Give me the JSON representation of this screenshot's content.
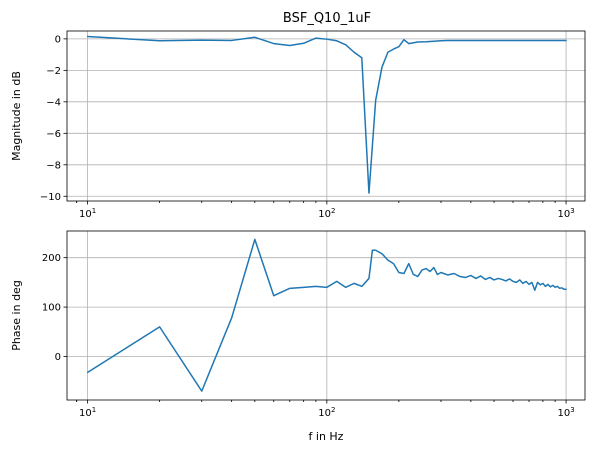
{
  "figure": {
    "title": "BSF_Q10_1uF"
  },
  "chart_data": [
    {
      "type": "line",
      "title": "BSF_Q10_1uF",
      "xlabel": "",
      "ylabel": "Magnitude in dB",
      "xscale": "log",
      "xlim": [
        8.2,
        1200
      ],
      "ylim": [
        -10.3,
        0.5
      ],
      "grid": true,
      "line_color": "#1f77b4",
      "x_ticks": [
        {
          "value": 10,
          "base": "10",
          "exp": "1"
        },
        {
          "value": 100,
          "base": "10",
          "exp": "2"
        },
        {
          "value": 1000,
          "base": "10",
          "exp": "3"
        }
      ],
      "y_ticks": [
        {
          "value": 0,
          "label": "0"
        },
        {
          "value": -2,
          "label": "−2"
        },
        {
          "value": -4,
          "label": "−4"
        },
        {
          "value": -6,
          "label": "−6"
        },
        {
          "value": -8,
          "label": "−8"
        },
        {
          "value": -10,
          "label": "−10"
        }
      ],
      "series": [
        {
          "x": [
            10,
            20,
            30,
            40,
            50,
            60,
            70,
            80,
            90,
            100,
            110,
            120,
            130,
            140,
            150,
            160,
            170,
            180,
            190,
            200,
            210,
            220,
            240,
            260,
            280,
            300,
            320,
            350,
            400,
            450,
            500,
            600,
            700,
            800,
            900,
            1000
          ],
          "y": [
            0.15,
            -0.12,
            -0.08,
            -0.1,
            0.1,
            -0.3,
            -0.42,
            -0.28,
            0.05,
            -0.02,
            -0.12,
            -0.38,
            -0.85,
            -1.2,
            -9.8,
            -3.9,
            -1.8,
            -0.85,
            -0.65,
            -0.5,
            -0.05,
            -0.3,
            -0.2,
            -0.18,
            -0.15,
            -0.12,
            -0.1,
            -0.1,
            -0.1,
            -0.1,
            -0.1,
            -0.1,
            -0.1,
            -0.1,
            -0.1,
            -0.1
          ]
        }
      ]
    },
    {
      "type": "line",
      "title": "",
      "xlabel": "f in Hz",
      "ylabel": "Phase in deg",
      "xscale": "log",
      "xlim": [
        8.2,
        1200
      ],
      "ylim": [
        -88,
        254
      ],
      "grid": true,
      "line_color": "#1f77b4",
      "x_ticks": [
        {
          "value": 10,
          "base": "10",
          "exp": "1"
        },
        {
          "value": 100,
          "base": "10",
          "exp": "2"
        },
        {
          "value": 1000,
          "base": "10",
          "exp": "3"
        }
      ],
      "y_ticks": [
        {
          "value": 0,
          "label": "0"
        },
        {
          "value": 100,
          "label": "100"
        },
        {
          "value": 200,
          "label": "200"
        }
      ],
      "series": [
        {
          "x": [
            10,
            20,
            30,
            40,
            50,
            60,
            70,
            80,
            90,
            100,
            110,
            120,
            130,
            140,
            150,
            155,
            160,
            170,
            180,
            190,
            200,
            210,
            220,
            230,
            240,
            250,
            260,
            270,
            280,
            290,
            300,
            320,
            340,
            360,
            380,
            400,
            420,
            440,
            460,
            480,
            500,
            520,
            540,
            560,
            580,
            600,
            620,
            640,
            660,
            680,
            700,
            720,
            740,
            760,
            780,
            800,
            820,
            840,
            860,
            880,
            900,
            920,
            940,
            960,
            980,
            1000
          ],
          "y": [
            -32,
            60,
            -70,
            78,
            237,
            123,
            138,
            140,
            142,
            140,
            152,
            140,
            148,
            142,
            158,
            215,
            215,
            208,
            195,
            188,
            170,
            168,
            188,
            166,
            162,
            175,
            178,
            172,
            180,
            166,
            170,
            165,
            168,
            162,
            160,
            164,
            158,
            163,
            156,
            160,
            155,
            158,
            156,
            153,
            157,
            152,
            150,
            155,
            148,
            152,
            146,
            150,
            134,
            150,
            145,
            148,
            142,
            146,
            141,
            144,
            140,
            142,
            138,
            139,
            136,
            136
          ]
        }
      ]
    }
  ]
}
